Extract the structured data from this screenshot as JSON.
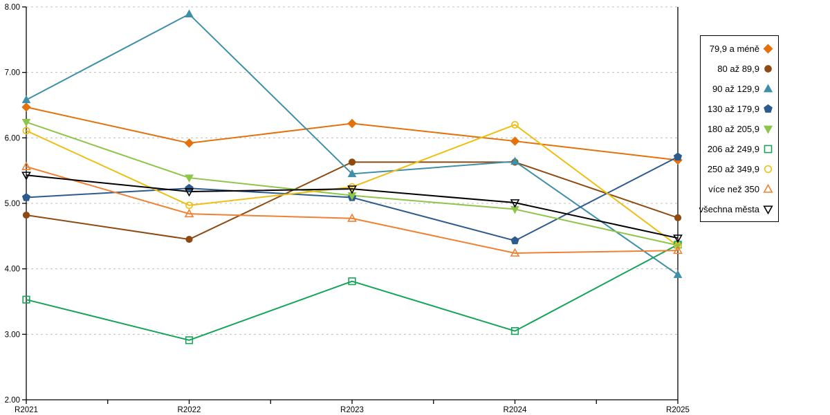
{
  "chart_data": {
    "type": "line",
    "title": "",
    "xlabel": "",
    "ylabel": "",
    "categories": [
      "R2021",
      "R2022",
      "R2023",
      "R2024",
      "R2025"
    ],
    "ylim": [
      2,
      8
    ],
    "ytick_step": 1,
    "ytick_labels": [
      "2.00",
      "3.00",
      "4.00",
      "5.00",
      "6.00",
      "7.00",
      "8.00"
    ],
    "grid": "horizontal-dashed",
    "gridline_color": "#BFBFBF",
    "axis_color": "#000000",
    "legend_position": "right",
    "series": [
      {
        "name": "79,9 a méně",
        "color": "#E4710B",
        "marker": "diamond",
        "filled": true,
        "values": [
          6.47,
          5.92,
          6.22,
          5.95,
          5.66
        ]
      },
      {
        "name": "80 až 89,9",
        "color": "#8E4A10",
        "marker": "circle",
        "filled": true,
        "values": [
          4.82,
          4.45,
          5.63,
          5.63,
          4.78
        ]
      },
      {
        "name": "90 až 129,9",
        "color": "#3E8FA8",
        "marker": "triangle-up",
        "filled": true,
        "values": [
          6.58,
          7.89,
          5.45,
          5.64,
          3.91
        ]
      },
      {
        "name": "130 až 179,9",
        "color": "#2E5B8D",
        "marker": "pentagon",
        "filled": true,
        "values": [
          5.09,
          5.23,
          5.09,
          4.43,
          5.71
        ]
      },
      {
        "name": "180 až 205,9",
        "color": "#8DC549",
        "marker": "triangle-down",
        "filled": true,
        "values": [
          6.24,
          5.39,
          5.12,
          4.91,
          4.36
        ]
      },
      {
        "name": "206 až 249,9",
        "color": "#16A45A",
        "marker": "square",
        "filled": false,
        "values": [
          3.53,
          2.91,
          3.81,
          3.05,
          4.37
        ]
      },
      {
        "name": "250 až 349,9",
        "color": "#EFBE12",
        "marker": "circle",
        "filled": false,
        "values": [
          6.11,
          4.97,
          5.25,
          6.2,
          4.35
        ]
      },
      {
        "name": "více než 350",
        "color": "#F08032",
        "marker": "triangle-up",
        "filled": false,
        "values": [
          5.56,
          4.84,
          4.77,
          4.24,
          4.28
        ]
      },
      {
        "name": "všechna města",
        "color": "#000000",
        "marker": "triangle-down",
        "filled": false,
        "values": [
          5.43,
          5.18,
          5.22,
          5.01,
          4.47
        ]
      }
    ]
  }
}
